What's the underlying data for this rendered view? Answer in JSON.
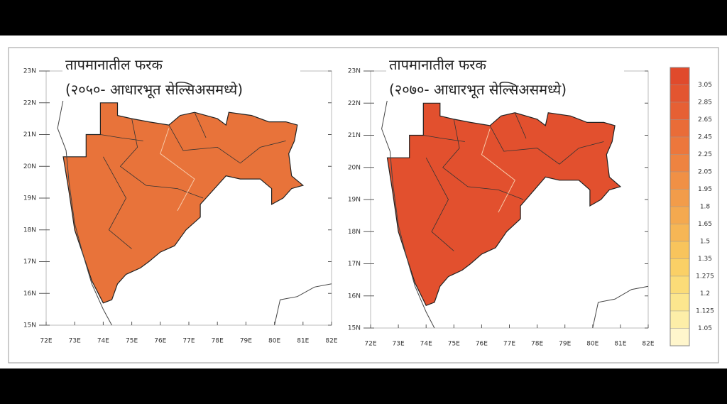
{
  "panels": [
    {
      "title_line1": "तापमानातील फरक",
      "title_line2": "(२०५०- आधारभूत सेल्सिअसमध्ये)",
      "fill": "#e8733a"
    },
    {
      "title_line1": "तापमानातील फरक",
      "title_line2": "(२०७०- आधारभूत सेल्सिअसमध्ये)",
      "fill": "#e2502e"
    }
  ],
  "axes": {
    "xticks": [
      "72E",
      "73E",
      "74E",
      "75E",
      "76E",
      "77E",
      "78E",
      "79E",
      "80E",
      "81E",
      "82E"
    ],
    "yticks": [
      "23N",
      "22N",
      "21N",
      "20N",
      "19N",
      "18N",
      "17N",
      "16N",
      "15N"
    ]
  },
  "colorbar": {
    "labels": [
      "3.05",
      "2.85",
      "2.65",
      "2.45",
      "2.25",
      "2.05",
      "1.95",
      "1.8",
      "1.65",
      "1.5",
      "1.35",
      "1.275",
      "1.2",
      "1.125",
      "1.05"
    ],
    "colors": [
      "#e04a2c",
      "#e35530",
      "#e66034",
      "#e96c38",
      "#ec773c",
      "#ee8340",
      "#f09045",
      "#f29c4a",
      "#f4a94f",
      "#f6b655",
      "#f8c45c",
      "#fad066",
      "#fbdc78",
      "#fce68e",
      "#fdeea8",
      "#fff6cc"
    ]
  }
}
